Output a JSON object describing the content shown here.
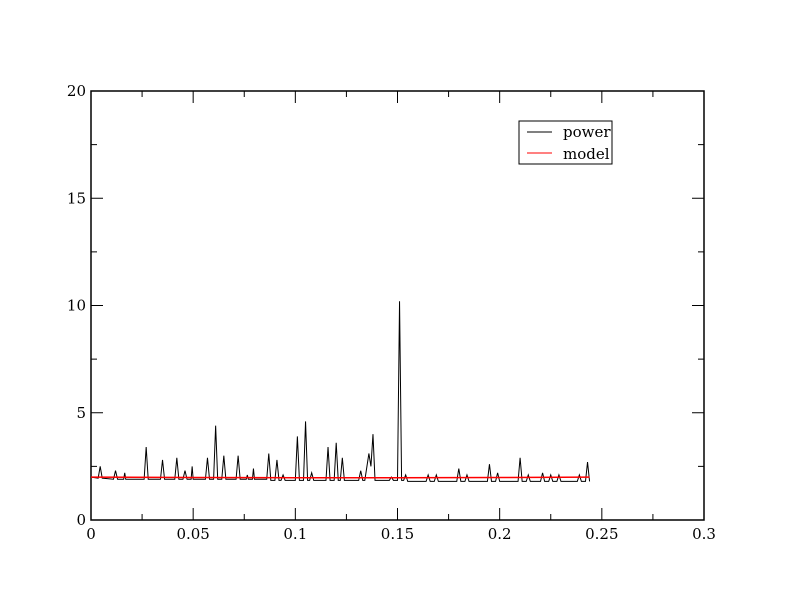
{
  "chart_data": {
    "type": "line",
    "title": "",
    "xlabel": "",
    "ylabel": "",
    "xlim": [
      0,
      0.3
    ],
    "ylim": [
      0,
      20
    ],
    "x_ticks": [
      0,
      0.05,
      0.1,
      0.15,
      0.2,
      0.25,
      0.3
    ],
    "x_tick_labels": [
      "0",
      "0.05",
      "0.1",
      "0.15",
      "0.2",
      "0.25",
      "0.3"
    ],
    "y_ticks": [
      0,
      5,
      10,
      15,
      20
    ],
    "y_tick_labels": [
      "0",
      "5",
      "10",
      "15",
      "20"
    ],
    "grid": false,
    "legend_position": "top-right",
    "series": [
      {
        "name": "power",
        "color": "#000000",
        "points": [
          [
            0.0,
            2.0
          ],
          [
            0.0035,
            1.95
          ],
          [
            0.0045,
            2.5
          ],
          [
            0.0055,
            1.95
          ],
          [
            0.011,
            1.9
          ],
          [
            0.012,
            2.3
          ],
          [
            0.013,
            1.9
          ],
          [
            0.016,
            1.9
          ],
          [
            0.0165,
            2.2
          ],
          [
            0.017,
            1.9
          ],
          [
            0.026,
            1.9
          ],
          [
            0.027,
            3.4
          ],
          [
            0.028,
            1.9
          ],
          [
            0.034,
            1.9
          ],
          [
            0.035,
            2.8
          ],
          [
            0.036,
            1.9
          ],
          [
            0.041,
            1.9
          ],
          [
            0.042,
            2.9
          ],
          [
            0.043,
            1.9
          ],
          [
            0.045,
            1.9
          ],
          [
            0.046,
            2.3
          ],
          [
            0.047,
            1.9
          ],
          [
            0.049,
            1.9
          ],
          [
            0.0495,
            2.5
          ],
          [
            0.05,
            1.9
          ],
          [
            0.056,
            1.9
          ],
          [
            0.057,
            2.9
          ],
          [
            0.058,
            1.9
          ],
          [
            0.06,
            1.9
          ],
          [
            0.061,
            4.4
          ],
          [
            0.062,
            1.9
          ],
          [
            0.064,
            1.9
          ],
          [
            0.065,
            3.0
          ],
          [
            0.066,
            1.9
          ],
          [
            0.071,
            1.9
          ],
          [
            0.072,
            3.0
          ],
          [
            0.073,
            1.9
          ],
          [
            0.076,
            1.9
          ],
          [
            0.0765,
            2.1
          ],
          [
            0.077,
            1.9
          ],
          [
            0.079,
            1.9
          ],
          [
            0.0795,
            2.4
          ],
          [
            0.08,
            1.9
          ],
          [
            0.086,
            1.9
          ],
          [
            0.087,
            3.1
          ],
          [
            0.088,
            1.85
          ],
          [
            0.09,
            1.85
          ],
          [
            0.091,
            2.8
          ],
          [
            0.092,
            1.85
          ],
          [
            0.093,
            1.85
          ],
          [
            0.094,
            2.1
          ],
          [
            0.095,
            1.85
          ],
          [
            0.1,
            1.85
          ],
          [
            0.101,
            3.9
          ],
          [
            0.102,
            1.85
          ],
          [
            0.104,
            1.85
          ],
          [
            0.105,
            4.6
          ],
          [
            0.106,
            1.85
          ],
          [
            0.107,
            1.85
          ],
          [
            0.108,
            2.2
          ],
          [
            0.109,
            1.85
          ],
          [
            0.115,
            1.85
          ],
          [
            0.116,
            3.4
          ],
          [
            0.117,
            1.85
          ],
          [
            0.119,
            1.85
          ],
          [
            0.12,
            3.6
          ],
          [
            0.121,
            1.85
          ],
          [
            0.122,
            1.85
          ],
          [
            0.123,
            2.9
          ],
          [
            0.124,
            1.85
          ],
          [
            0.131,
            1.85
          ],
          [
            0.132,
            2.3
          ],
          [
            0.133,
            1.85
          ],
          [
            0.134,
            1.85
          ],
          [
            0.136,
            3.1
          ],
          [
            0.137,
            2.5
          ],
          [
            0.138,
            4.0
          ],
          [
            0.139,
            1.85
          ],
          [
            0.146,
            1.85
          ],
          [
            0.147,
            2.0
          ],
          [
            0.148,
            1.85
          ],
          [
            0.15,
            1.85
          ],
          [
            0.151,
            10.2
          ],
          [
            0.152,
            1.85
          ],
          [
            0.153,
            1.85
          ],
          [
            0.154,
            2.1
          ],
          [
            0.155,
            1.8
          ],
          [
            0.164,
            1.8
          ],
          [
            0.165,
            2.1
          ],
          [
            0.166,
            1.8
          ],
          [
            0.168,
            1.8
          ],
          [
            0.169,
            2.1
          ],
          [
            0.17,
            1.8
          ],
          [
            0.179,
            1.8
          ],
          [
            0.18,
            2.4
          ],
          [
            0.181,
            1.8
          ],
          [
            0.183,
            1.8
          ],
          [
            0.184,
            2.1
          ],
          [
            0.185,
            1.8
          ],
          [
            0.194,
            1.8
          ],
          [
            0.195,
            2.6
          ],
          [
            0.196,
            1.8
          ],
          [
            0.198,
            1.8
          ],
          [
            0.199,
            2.2
          ],
          [
            0.2,
            1.8
          ],
          [
            0.209,
            1.8
          ],
          [
            0.21,
            2.9
          ],
          [
            0.211,
            1.8
          ],
          [
            0.213,
            1.8
          ],
          [
            0.214,
            2.1
          ],
          [
            0.215,
            1.8
          ],
          [
            0.22,
            1.8
          ],
          [
            0.221,
            2.2
          ],
          [
            0.222,
            1.8
          ],
          [
            0.224,
            1.8
          ],
          [
            0.225,
            2.1
          ],
          [
            0.226,
            1.8
          ],
          [
            0.228,
            1.8
          ],
          [
            0.229,
            2.1
          ],
          [
            0.23,
            1.8
          ],
          [
            0.238,
            1.8
          ],
          [
            0.239,
            2.1
          ],
          [
            0.24,
            1.8
          ],
          [
            0.242,
            1.8
          ],
          [
            0.243,
            2.7
          ],
          [
            0.244,
            1.8
          ]
        ]
      },
      {
        "name": "model",
        "color": "#ff0000",
        "points": [
          [
            0.0,
            2.0
          ],
          [
            0.05,
            1.98
          ],
          [
            0.1,
            1.97
          ],
          [
            0.15,
            1.97
          ],
          [
            0.2,
            1.98
          ],
          [
            0.244,
            2.0
          ]
        ]
      }
    ]
  }
}
